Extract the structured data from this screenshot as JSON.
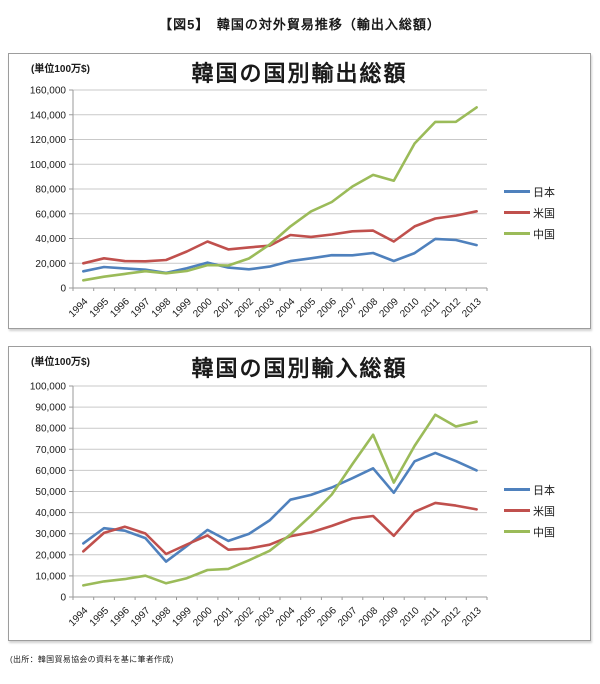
{
  "page": {
    "title": "【図5】　韓国の対外貿易推移（輸出入総額）",
    "source_note": "(出所：韓国貿易協会の資料を基に筆者作成)"
  },
  "colors": {
    "japan": "#4F81BD",
    "usa": "#C0504D",
    "china": "#9BBB59",
    "grid": "#C9C9C9",
    "axis": "#9A9A9A",
    "text": "#1A1A1A"
  },
  "chart_data": [
    {
      "type": "line",
      "title": "韓国の国別輸出総額",
      "unit_label": "(単位100万$)",
      "categories": [
        1994,
        1995,
        1996,
        1997,
        1998,
        1999,
        2000,
        2001,
        2002,
        2003,
        2004,
        2005,
        2006,
        2007,
        2008,
        2009,
        2010,
        2011,
        2012,
        2013
      ],
      "series": [
        {
          "name": "日本",
          "color": "#4F81BD",
          "values": [
            13500,
            17000,
            15800,
            14800,
            12200,
            15900,
            20500,
            16500,
            15100,
            17300,
            21700,
            24000,
            26500,
            26400,
            28300,
            21800,
            28200,
            39700,
            38800,
            34700
          ]
        },
        {
          "name": "米国",
          "color": "#C0504D",
          "values": [
            20000,
            24000,
            21700,
            21600,
            22600,
            29500,
            37600,
            31200,
            32800,
            34200,
            42800,
            41300,
            43200,
            45800,
            46400,
            37600,
            49800,
            56200,
            58500,
            62000
          ]
        },
        {
          "name": "中国",
          "color": "#9BBB59",
          "values": [
            6200,
            9100,
            11400,
            13600,
            11900,
            13700,
            18500,
            18200,
            23800,
            35100,
            49800,
            61900,
            69500,
            82000,
            91400,
            86700,
            116800,
            134200,
            134300,
            145900
          ]
        }
      ],
      "ylim": [
        0,
        160000
      ],
      "ytick_step": 20000,
      "grid": true,
      "legend_position": "right",
      "xlabel": "",
      "ylabel": ""
    },
    {
      "type": "line",
      "title": "韓国の国別輸入総額",
      "unit_label": "(単位100万$)",
      "categories": [
        1994,
        1995,
        1996,
        1997,
        1998,
        1999,
        2000,
        2001,
        2002,
        2003,
        2004,
        2005,
        2006,
        2007,
        2008,
        2009,
        2010,
        2011,
        2012,
        2013
      ],
      "series": [
        {
          "name": "日本",
          "color": "#4F81BD",
          "values": [
            25400,
            32600,
            31400,
            27900,
            16800,
            24100,
            31800,
            26600,
            29900,
            36300,
            46100,
            48400,
            51900,
            56300,
            61000,
            49400,
            64300,
            68300,
            64400,
            60000
          ]
        },
        {
          "name": "米国",
          "color": "#C0504D",
          "values": [
            21600,
            30400,
            33300,
            30100,
            20400,
            24900,
            29200,
            22400,
            23000,
            24800,
            28800,
            30600,
            33700,
            37200,
            38400,
            29000,
            40400,
            44600,
            43300,
            41500
          ]
        },
        {
          "name": "中国",
          "color": "#9BBB59",
          "values": [
            5500,
            7400,
            8500,
            10100,
            6500,
            8900,
            12800,
            13300,
            17400,
            21900,
            29600,
            38600,
            48600,
            63000,
            76900,
            54200,
            71600,
            86400,
            80800,
            83100
          ]
        }
      ],
      "ylim": [
        0,
        100000
      ],
      "ytick_step": 10000,
      "grid": true,
      "legend_position": "right",
      "xlabel": "",
      "ylabel": ""
    }
  ]
}
